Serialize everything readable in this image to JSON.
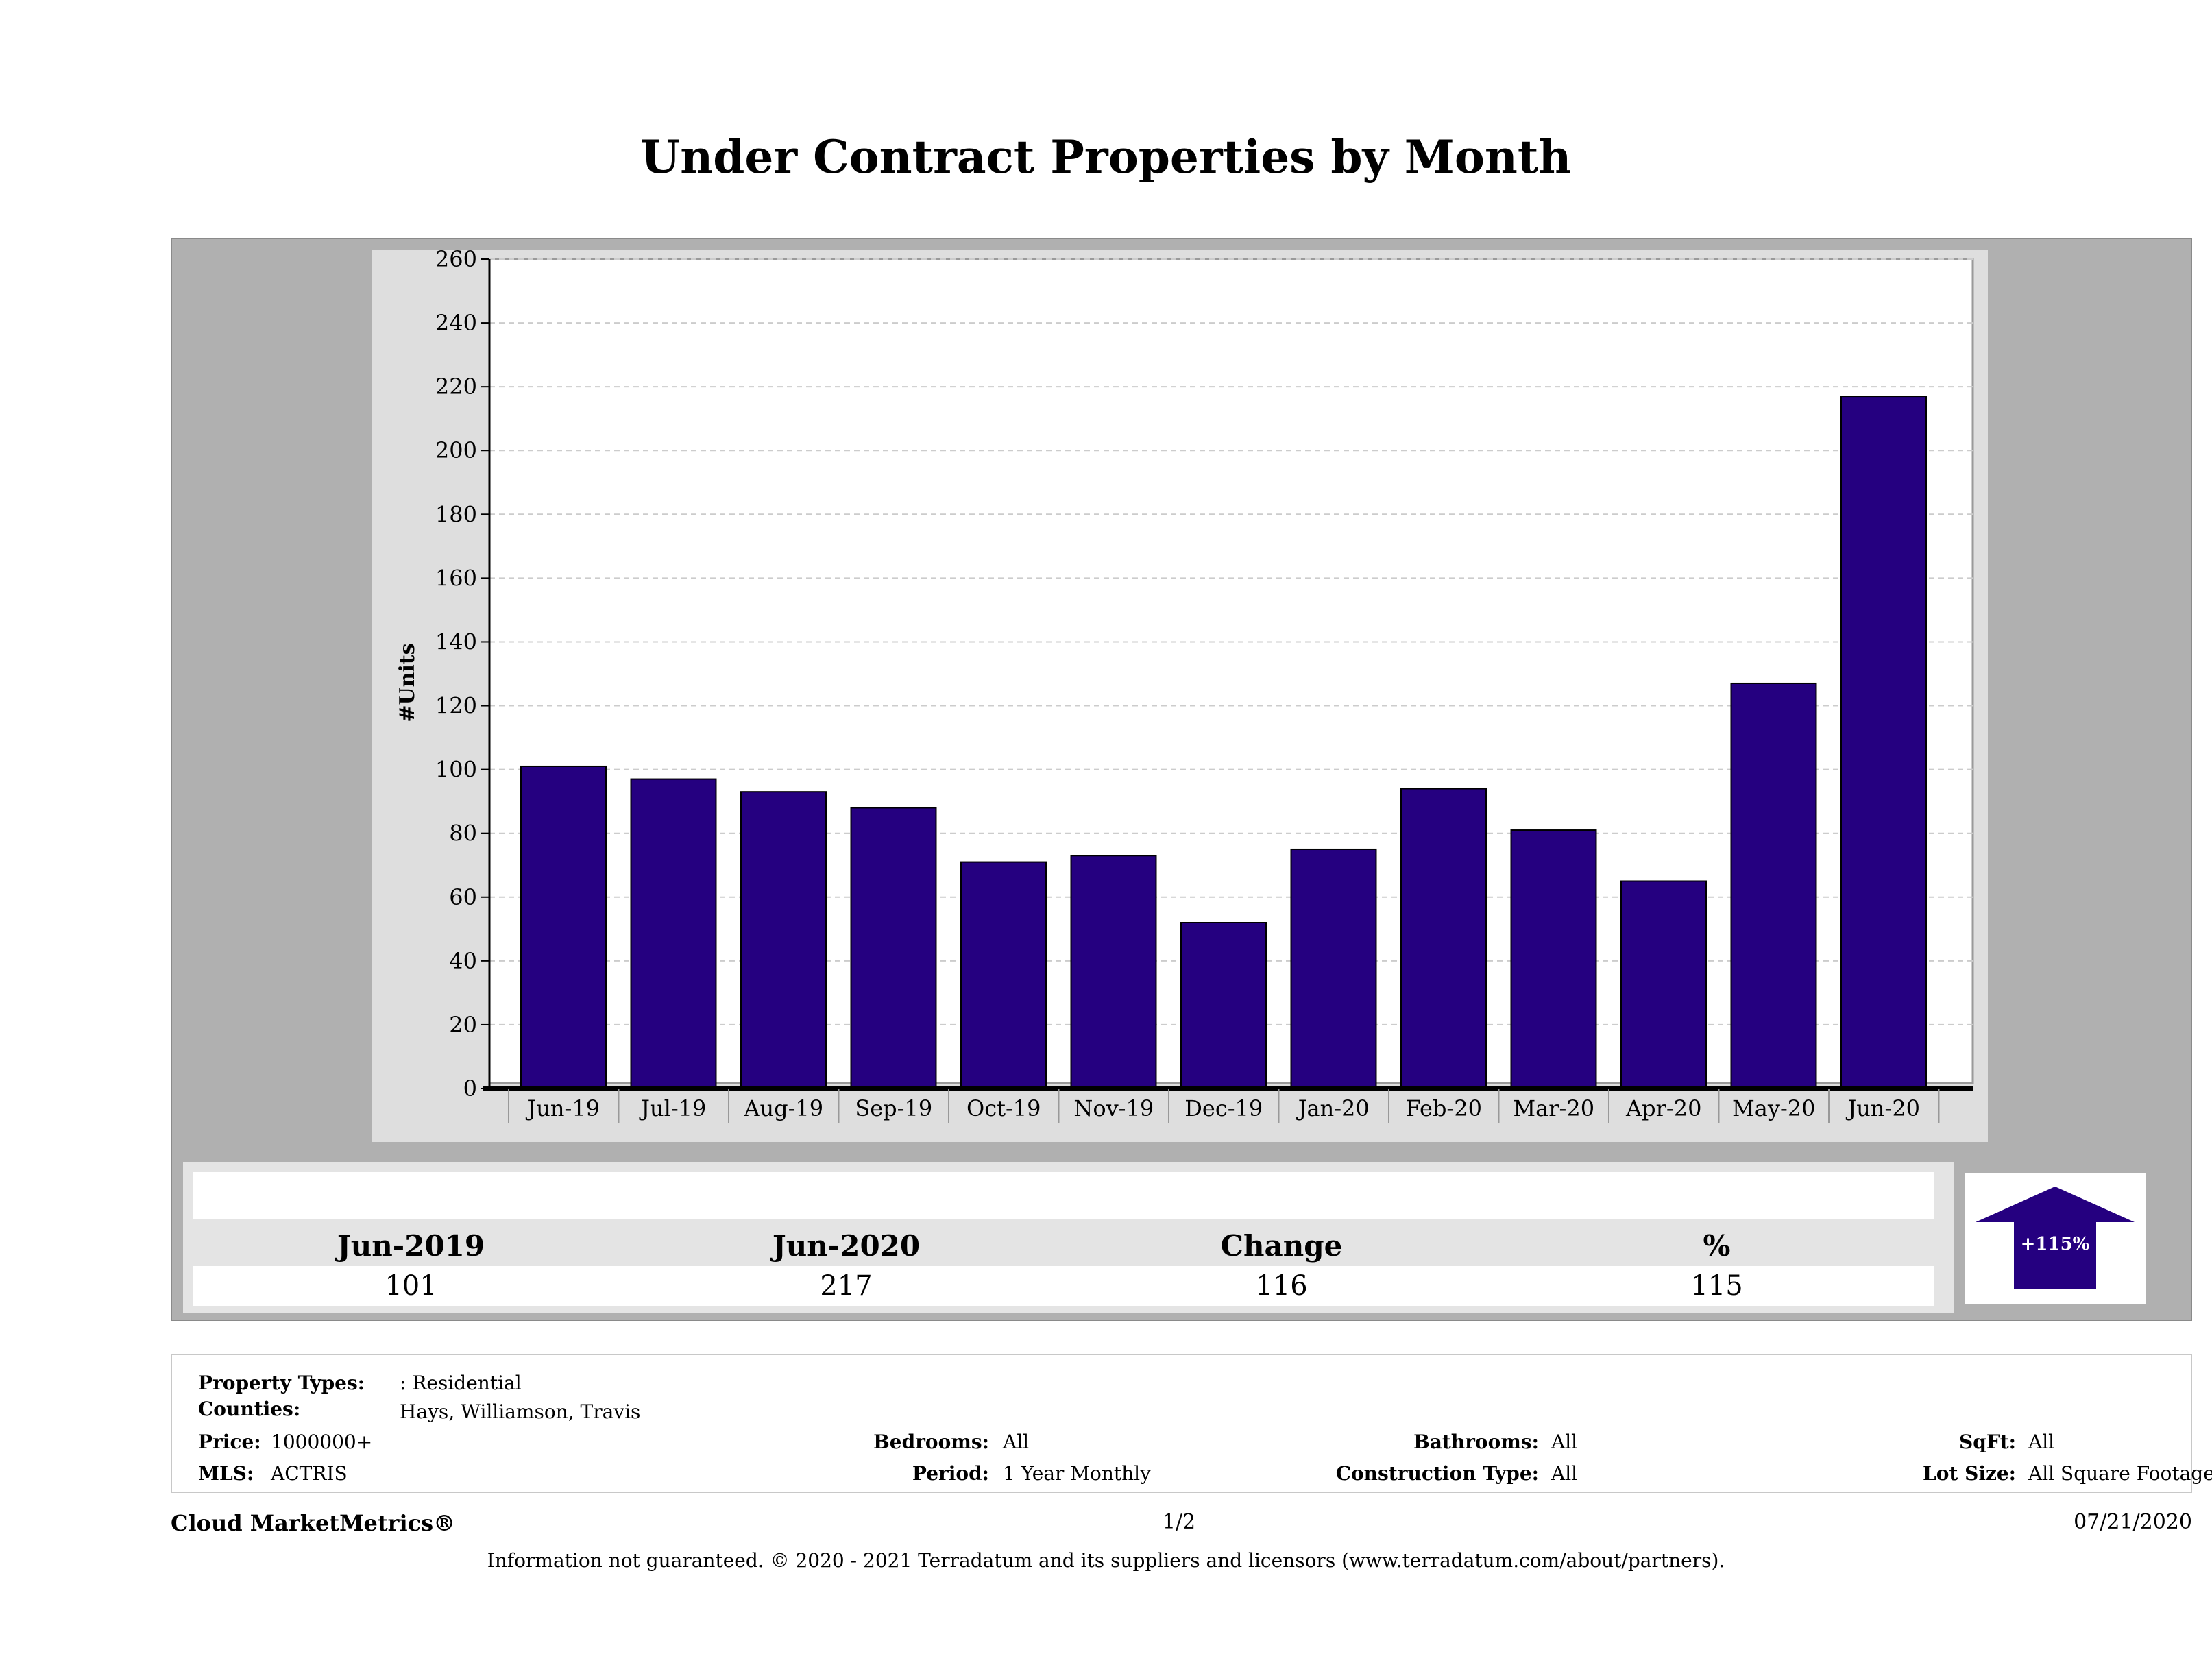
{
  "title": "Under Contract Properties by Month",
  "chart_data": {
    "type": "bar",
    "title": "Under Contract Properties by Month",
    "xlabel": "",
    "ylabel": "#Units",
    "categories": [
      "Jun-19",
      "Jul-19",
      "Aug-19",
      "Sep-19",
      "Oct-19",
      "Nov-19",
      "Dec-19",
      "Jan-20",
      "Feb-20",
      "Mar-20",
      "Apr-20",
      "May-20",
      "Jun-20"
    ],
    "values": [
      101,
      97,
      93,
      88,
      71,
      73,
      52,
      75,
      94,
      81,
      65,
      127,
      217
    ],
    "ylim": [
      0,
      260
    ],
    "yticks": [
      0,
      20,
      40,
      60,
      80,
      100,
      120,
      140,
      160,
      180,
      200,
      220,
      240,
      260
    ],
    "grid": true,
    "bar_color": "#250080"
  },
  "summary": {
    "headers": [
      "Jun-2019",
      "Jun-2020",
      "Change",
      "%"
    ],
    "values": [
      "101",
      "217",
      "116",
      "115"
    ],
    "badge": "+115%",
    "badge_color": "#250080"
  },
  "details": {
    "property_types_label": "Property Types:",
    "property_types_value": ": Residential",
    "counties_label": "Counties:",
    "counties_value": "Hays, Williamson, Travis",
    "price_label": "Price:",
    "price_value": "1000000+",
    "mls_label": "MLS:",
    "mls_value": "ACTRIS",
    "bedrooms_label": "Bedrooms:",
    "bedrooms_value": "All",
    "period_label": "Period:",
    "period_value": "1 Year Monthly",
    "bathrooms_label": "Bathrooms:",
    "bathrooms_value": "All",
    "construction_label": "Construction Type:",
    "construction_value": "All",
    "sqft_label": "SqFt:",
    "sqft_value": "All",
    "lotsize_label": "Lot Size:",
    "lotsize_value": "All Square Footage"
  },
  "footer": {
    "brand": "Cloud MarketMetrics®",
    "page": "1/2",
    "date": "07/21/2020",
    "disclaimer": "Information not guaranteed. © 2020 - 2021 Terradatum and its suppliers and licensors (www.terradatum.com/about/partners)."
  }
}
